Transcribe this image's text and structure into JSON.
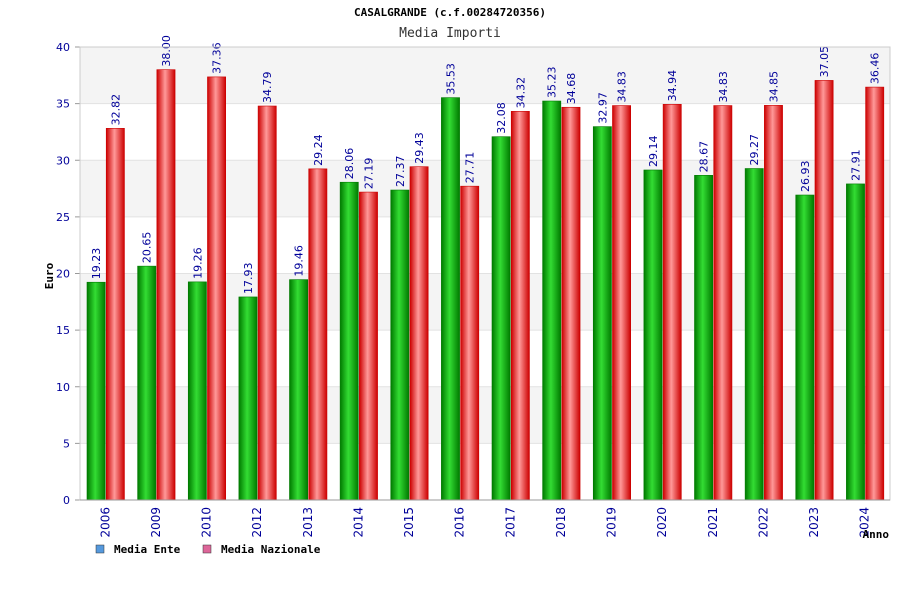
{
  "chart_data": {
    "type": "bar",
    "title": "CASALGRANDE (c.f.00284720356)",
    "subtitle": "Media Importi",
    "xlabel": "Anno",
    "ylabel": "Euro",
    "ylim": [
      0,
      40
    ],
    "yticks": [
      "0",
      "5",
      "10",
      "15",
      "20",
      "25",
      "30",
      "35",
      "40"
    ],
    "grid": true,
    "legend_position": "bottom-left",
    "categories": [
      "2006",
      "2009",
      "2010",
      "2012",
      "2013",
      "2014",
      "2015",
      "2016",
      "2017",
      "2018",
      "2019",
      "2020",
      "2021",
      "2022",
      "2023",
      "2024"
    ],
    "series": [
      {
        "name": "Media Ente",
        "values": [
          19.23,
          20.65,
          19.26,
          17.93,
          19.46,
          28.06,
          27.37,
          35.53,
          32.08,
          35.23,
          32.97,
          29.14,
          28.67,
          29.27,
          26.93,
          27.91
        ],
        "labels": [
          "19.23",
          "20.65",
          "19.26",
          "17.93",
          "19.46",
          "28.06",
          "27.37",
          "35.53",
          "32.08",
          "35.23",
          "32.97",
          "29.14",
          "28.67",
          "29.27",
          "26.93",
          "27.91"
        ]
      },
      {
        "name": "Media Nazionale",
        "values": [
          32.82,
          38.0,
          37.36,
          34.79,
          29.24,
          27.19,
          29.43,
          27.71,
          34.32,
          34.68,
          34.83,
          34.94,
          34.83,
          34.85,
          37.05,
          36.46
        ],
        "labels": [
          "32.82",
          "38.00",
          "37.36",
          "34.79",
          "29.24",
          "27.19",
          "29.43",
          "27.71",
          "34.32",
          "34.68",
          "34.83",
          "34.94",
          "34.83",
          "34.85",
          "37.05",
          "36.46"
        ]
      }
    ]
  },
  "colors": {
    "ente_dark": "#007a00",
    "ente_light": "#33dd33",
    "naz_dark": "#cc0000",
    "naz_light": "#ff9999",
    "legend_ente": "#5599dd",
    "legend_naz": "#dd6699",
    "axis_text": "#000099",
    "band": "#f4f4f4"
  }
}
